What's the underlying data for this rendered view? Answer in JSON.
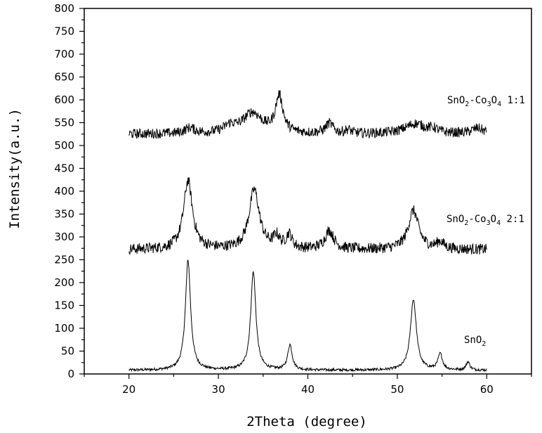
{
  "chart_data": {
    "type": "line",
    "title": "",
    "xlabel": "2Theta (degree)",
    "ylabel": "Intensity(a.u.)",
    "xlim": [
      15,
      65
    ],
    "ylim": [
      0,
      800
    ],
    "x_ticks": [
      20,
      30,
      40,
      50,
      60
    ],
    "y_ticks": [
      0,
      50,
      100,
      150,
      200,
      250,
      300,
      350,
      400,
      450,
      500,
      550,
      600,
      650,
      700,
      750,
      800
    ],
    "grid": false,
    "legend": "none",
    "line_color": "#000000",
    "series": [
      {
        "name": "SnO2",
        "label_parts": [
          [
            "SnO",
            ""
          ],
          [
            "2",
            "sub"
          ]
        ],
        "baseline": 8,
        "noise": 3,
        "peaks": [
          [
            26.6,
            240,
            0.35
          ],
          [
            33.9,
            215,
            0.35
          ],
          [
            38.0,
            55,
            0.3
          ],
          [
            51.8,
            155,
            0.4
          ],
          [
            54.8,
            35,
            0.3
          ],
          [
            57.9,
            18,
            0.25
          ]
        ],
        "x_range": [
          20,
          60
        ]
      },
      {
        "name": "SnO2-Co3O4 2:1",
        "label_parts": [
          [
            "SnO",
            ""
          ],
          [
            "2",
            "sub"
          ],
          [
            "-Co",
            ""
          ],
          [
            "3",
            "sub"
          ],
          [
            "O",
            ""
          ],
          [
            "4",
            "sub"
          ],
          [
            " 2:1",
            ""
          ]
        ],
        "baseline": 272,
        "noise": 12,
        "peaks": [
          [
            26.6,
            150,
            0.6
          ],
          [
            34.0,
            130,
            0.7
          ],
          [
            36.5,
            25,
            0.4
          ],
          [
            37.9,
            30,
            0.4
          ],
          [
            42.4,
            40,
            0.6
          ],
          [
            51.8,
            85,
            0.7
          ],
          [
            54.8,
            15,
            0.5
          ]
        ],
        "x_range": [
          20,
          60
        ]
      },
      {
        "name": "SnO2-Co3O4 1:1",
        "label_parts": [
          [
            "SnO",
            ""
          ],
          [
            "2",
            "sub"
          ],
          [
            "-Co",
            ""
          ],
          [
            "3",
            "sub"
          ],
          [
            "O",
            ""
          ],
          [
            "4",
            "sub"
          ],
          [
            " 1:1",
            ""
          ]
        ],
        "baseline": 525,
        "noise": 11,
        "peaks": [
          [
            26.8,
            12,
            0.7
          ],
          [
            31.3,
            15,
            0.8
          ],
          [
            33.8,
            45,
            1.3
          ],
          [
            36.8,
            80,
            0.5
          ],
          [
            42.4,
            22,
            0.5
          ],
          [
            44.5,
            8,
            0.4
          ],
          [
            52.0,
            22,
            1.4
          ],
          [
            54.0,
            8,
            0.6
          ],
          [
            59.0,
            12,
            0.8
          ]
        ],
        "x_range": [
          20,
          60
        ]
      }
    ]
  }
}
